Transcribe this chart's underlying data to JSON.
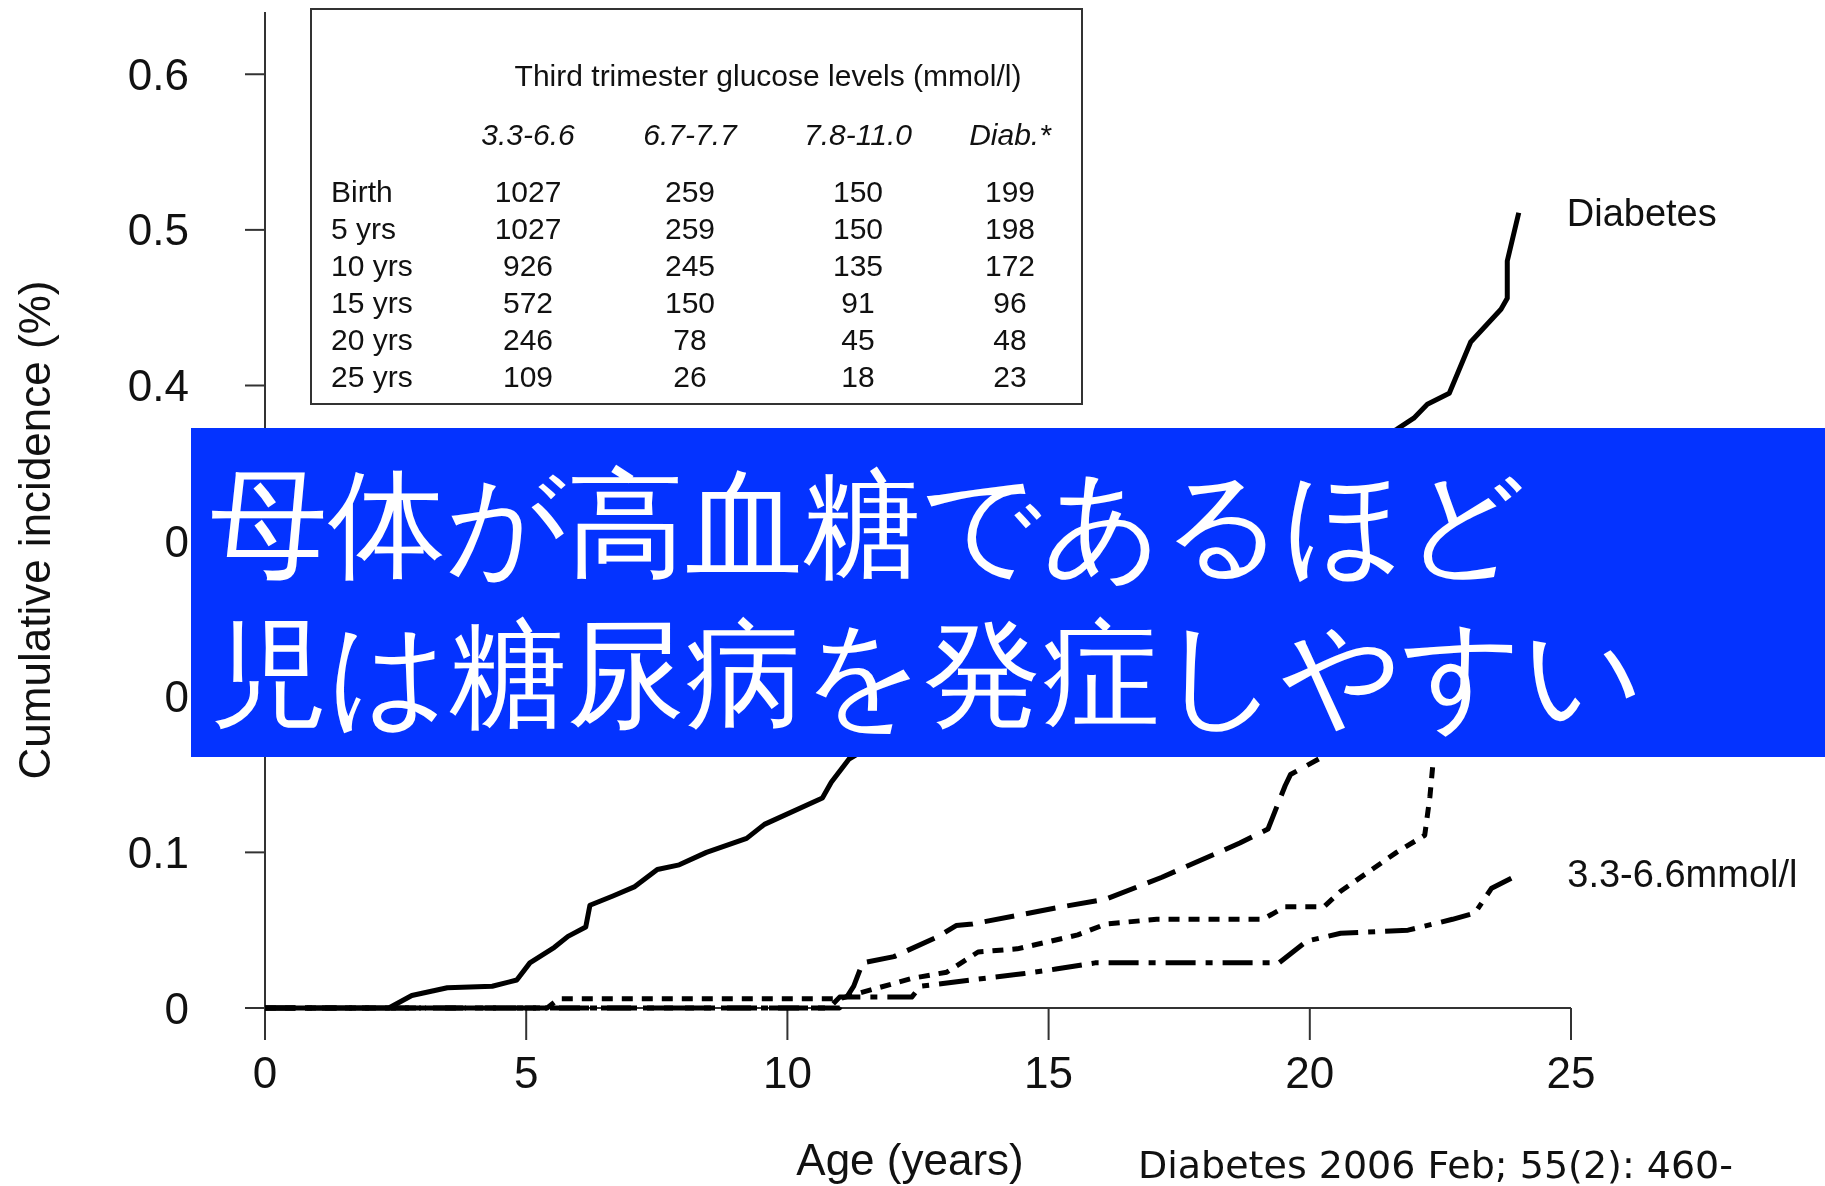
{
  "chart_data": {
    "type": "line",
    "xlabel": "Age (years)",
    "ylabel": "Cumulative incidence (%)",
    "xlim": [
      0,
      25
    ],
    "ylim": [
      0,
      0.64
    ],
    "xticks": [
      0,
      5,
      10,
      15,
      20,
      25
    ],
    "yticks": [
      0,
      0.1,
      {
        "value": 0.2,
        "label": "0"
      },
      {
        "value": 0.3,
        "label": "0"
      },
      0.4,
      0.5,
      0.6
    ],
    "series": [
      {
        "name": "Diabetes",
        "color": "#000000",
        "line_style": "solid",
        "x": [
          0,
          2.37,
          2.81,
          3.49,
          4.35,
          4.82,
          5.07,
          5.54,
          5.8,
          6.14,
          6.22,
          6.66,
          7.08,
          7.51,
          7.93,
          8.45,
          9.22,
          9.56,
          10.67,
          10.84,
          11.18,
          21.67,
          21.99,
          22.25,
          22.67,
          23.08,
          23.66,
          23.78,
          23.78,
          24.0
        ],
        "values": [
          0,
          0,
          0.008,
          0.013,
          0.014,
          0.018,
          0.029,
          0.039,
          0.046,
          0.052,
          0.066,
          0.072,
          0.078,
          0.089,
          0.092,
          0.1,
          0.109,
          0.118,
          0.135,
          0.145,
          0.16,
          0.372,
          0.379,
          0.388,
          0.395,
          0.428,
          0.449,
          0.456,
          0.48,
          0.511
        ]
      },
      {
        "color": "#000000",
        "line_style": "dashed",
        "x": [
          0,
          11.0,
          11.27,
          11.44,
          12.04,
          12.89,
          13.23,
          13.54,
          15.25,
          16.1,
          17.17,
          18.66,
          19.2,
          19.53,
          19.63,
          20.17
        ],
        "values": [
          0,
          0,
          0.014,
          0.029,
          0.033,
          0.046,
          0.053,
          0.054,
          0.065,
          0.07,
          0.084,
          0.106,
          0.115,
          0.143,
          0.15,
          0.16
        ]
      },
      {
        "color": "#000000",
        "line_style": "dotted",
        "x": [
          0,
          5.4,
          5.63,
          11.0,
          12.38,
          13.05,
          13.65,
          14.4,
          15.56,
          16.1,
          17.07,
          19.1,
          19.53,
          20.27,
          20.59,
          21.66,
          22.2,
          22.3,
          22.36
        ],
        "values": [
          0,
          0,
          0.006,
          0.006,
          0.019,
          0.023,
          0.036,
          0.038,
          0.047,
          0.054,
          0.057,
          0.057,
          0.065,
          0.065,
          0.075,
          0.1,
          0.111,
          0.136,
          0.158
        ]
      },
      {
        "name": "3.3-6.6mmol/l",
        "color": "#000000",
        "line_style": "dashdot",
        "x": [
          0,
          10.8,
          11.0,
          12.38,
          12.55,
          14.5,
          15.14,
          15.89,
          19.41,
          19.94,
          20.59,
          21.88,
          22.73,
          23.16,
          23.48,
          24.01
        ],
        "values": [
          0,
          0,
          0.007,
          0.007,
          0.014,
          0.022,
          0.025,
          0.029,
          0.029,
          0.043,
          0.048,
          0.05,
          0.057,
          0.061,
          0.077,
          0.086
        ]
      }
    ],
    "annotations": [
      "母体が高血糖であるほど",
      "児は糖尿病を発症しやすい",
      "Diabetes 2006 Feb; 55(2): 460-",
      "Third trimester glucose levels (mmol/l)",
      "3.3-6.6",
      "6.7-7.7",
      "7.8-11.0",
      "Diab.*",
      "Birth",
      "1027",
      "259",
      "150",
      "199",
      "5 yrs",
      "1027",
      "259",
      "150",
      "198",
      "10 yrs",
      "926",
      "245",
      "135",
      "172",
      "15 yrs",
      "572",
      "150",
      "91",
      "96",
      "20 yrs",
      "246",
      "78",
      "45",
      "48",
      "25 yrs",
      "109",
      "26",
      "18",
      "23"
    ]
  }
}
